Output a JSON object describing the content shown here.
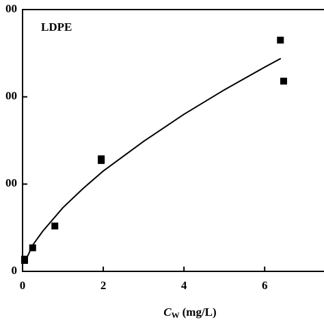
{
  "chart_data": {
    "type": "scatter",
    "annotation": "LDPE",
    "xlabel": {
      "symbol": "C",
      "subscript": "W",
      "unit": "(mg/L)"
    },
    "xlim": [
      0,
      7.47
    ],
    "xticks": [
      0,
      2,
      4,
      6
    ],
    "ylim": [
      0,
      300
    ],
    "yticks": [
      {
        "value": 0,
        "label": "0"
      },
      {
        "value": 100,
        "label": "00"
      },
      {
        "value": 200,
        "label": "00"
      },
      {
        "value": 300,
        "label": "00"
      }
    ],
    "series": [
      {
        "kind": "points",
        "color": "#000000",
        "x": [
          0.05,
          0.05,
          0.25,
          0.8,
          1.95,
          1.95,
          6.39,
          6.47
        ],
        "values": [
          14,
          12.5,
          27,
          52,
          129,
          127,
          265,
          218
        ]
      },
      {
        "kind": "line",
        "color": "#000000",
        "x": [
          0.05,
          0.25,
          0.5,
          1,
          1.5,
          2,
          3,
          4,
          5,
          6,
          6.4
        ],
        "values": [
          10,
          30,
          46,
          73,
          95,
          115,
          149,
          180,
          208,
          234,
          244
        ]
      }
    ]
  }
}
